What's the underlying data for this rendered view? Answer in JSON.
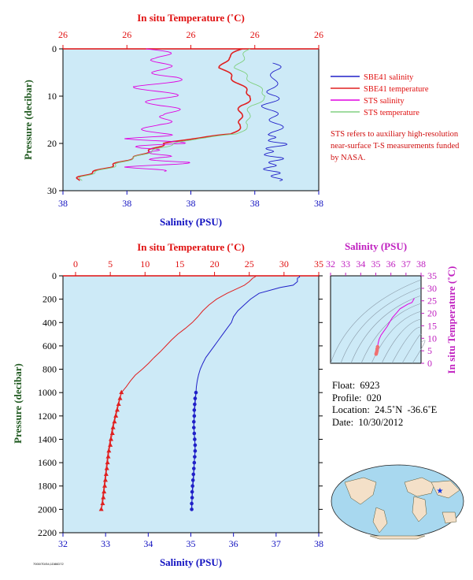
{
  "colors": {
    "salinity": "#2020c8",
    "temperature": "#e02020",
    "sts_salinity": "#e000e0",
    "sts_temperature": "#80d080",
    "plot_bg": "#cdeaf7",
    "axis_red": "#e01010",
    "axis_blue": "#1010c0",
    "axis_green": "#205a20",
    "axis_magenta": "#c020c0"
  },
  "top_panel": {
    "title": "In situ Temperature (˚C)",
    "temp_ticks": [
      "26",
      "26",
      "26",
      "26",
      "26"
    ],
    "xlabel": "Salinity (PSU)",
    "sal_ticks": [
      "38",
      "38",
      "38",
      "38",
      "38"
    ],
    "ylabel": "Pressure (decibar)",
    "y_ticks": [
      "0",
      "10",
      "20",
      "30"
    ],
    "legend": [
      {
        "label": "SBE41 salinity",
        "color": "#2020c8"
      },
      {
        "label": "SBE41 temperature",
        "color": "#e02020"
      },
      {
        "label": "STS salinity",
        "color": "#e000e0"
      },
      {
        "label": "STS temperature",
        "color": "#80d080"
      }
    ],
    "note": "STS refers to auxiliary high-resolution near-surface T-S measurements funded by NASA."
  },
  "main_panel": {
    "title": "In situ Temperature (˚C)",
    "temp_ticks": [
      "0",
      "5",
      "10",
      "15",
      "20",
      "25",
      "30",
      "35"
    ],
    "xlabel": "Salinity (PSU)",
    "sal_ticks": [
      "32",
      "33",
      "34",
      "35",
      "36",
      "37",
      "38"
    ],
    "ylabel": "Pressure (decibar)",
    "y_ticks": [
      "0",
      "200",
      "400",
      "600",
      "800",
      "1000",
      "1200",
      "1400",
      "1600",
      "1800",
      "2000",
      "2200"
    ]
  },
  "ts_panel": {
    "title": "Salinity (PSU)",
    "sal_ticks": [
      "32",
      "33",
      "34",
      "35",
      "36",
      "37",
      "38"
    ],
    "ylabel": "In situ Temperature (˚C)",
    "temp_ticks": [
      "0",
      "5",
      "10",
      "15",
      "20",
      "25",
      "30",
      "35"
    ]
  },
  "info": {
    "float": "Float:  6923",
    "profile": "Profile:  020",
    "location": "Location:  24.5˚N  -36.6˚E",
    "date": "Date:  10/30/2012"
  },
  "footer": "7000/7D/54,1D86D72",
  "chart_data": [
    {
      "type": "line",
      "title": "In situ Temperature (˚C)",
      "xlabel": "Salinity (PSU)",
      "ylabel": "Pressure (decibar)",
      "ylim": [
        0,
        30
      ],
      "series": [
        {
          "name": "SBE41 salinity",
          "pressure": [
            3,
            5,
            8,
            10,
            12,
            14,
            16,
            18,
            19,
            20,
            21,
            22,
            23,
            24,
            25,
            26,
            27,
            28
          ],
          "x_frac": [
            0.82,
            0.84,
            0.81,
            0.83,
            0.8,
            0.82,
            0.84,
            0.83,
            0.8,
            0.86,
            0.82,
            0.79,
            0.84,
            0.83,
            0.8,
            0.82,
            0.84,
            0.83
          ]
        },
        {
          "name": "SBE41 temperature",
          "pressure": [
            0,
            2,
            4,
            6,
            8,
            10,
            12,
            14,
            16,
            18,
            19,
            20,
            21,
            22,
            23,
            24,
            25,
            26,
            27,
            28
          ],
          "x_frac": [
            0.7,
            0.64,
            0.62,
            0.66,
            0.7,
            0.74,
            0.7,
            0.69,
            0.7,
            0.66,
            0.5,
            0.4,
            0.36,
            0.32,
            0.28,
            0.22,
            0.18,
            0.12,
            0.07,
            0.05
          ]
        },
        {
          "name": "STS salinity",
          "pressure": [
            0,
            2,
            4,
            6,
            8,
            10,
            12,
            14,
            16,
            18,
            19,
            20,
            21,
            22,
            23,
            24,
            25,
            26
          ],
          "x_frac": [
            0.33,
            0.41,
            0.36,
            0.44,
            0.33,
            0.4,
            0.37,
            0.45,
            0.34,
            0.39,
            0.3,
            0.44,
            0.28,
            0.4,
            0.35,
            0.46,
            0.3,
            0.36
          ]
        },
        {
          "name": "STS temperature",
          "pressure": [
            0,
            2,
            4,
            6,
            8,
            10,
            12,
            14,
            16,
            18,
            19,
            20,
            21,
            22,
            23,
            24,
            25,
            26,
            27,
            28
          ],
          "x_frac": [
            0.73,
            0.7,
            0.68,
            0.72,
            0.76,
            0.8,
            0.74,
            0.72,
            0.73,
            0.68,
            0.52,
            0.44,
            0.38,
            0.33,
            0.28,
            0.23,
            0.19,
            0.13,
            0.08,
            0.06
          ]
        }
      ]
    },
    {
      "type": "line",
      "title": "In situ Temperature (˚C)",
      "xlabel": "Salinity (PSU)",
      "ylabel": "Pressure (decibar)",
      "ylim": [
        0,
        2200
      ],
      "xlim_temperature": [
        0,
        35
      ],
      "xlim_salinity": [
        32,
        38
      ],
      "series": [
        {
          "name": "temperature",
          "unit": "˚C",
          "pressure": [
            0,
            10,
            20,
            50,
            80,
            100,
            150,
            200,
            250,
            300,
            350,
            400,
            450,
            500,
            550,
            600,
            650,
            700,
            750,
            800,
            850,
            900,
            950,
            1000,
            1100,
            1200,
            1300,
            1400,
            1500,
            1600,
            1700,
            1800,
            1900,
            2000
          ],
          "values": [
            26.0,
            25.8,
            25.5,
            25.0,
            24.3,
            23.6,
            21.8,
            20.3,
            19.2,
            18.3,
            17.6,
            16.8,
            15.8,
            14.7,
            13.8,
            13.0,
            12.2,
            11.3,
            10.5,
            9.6,
            8.6,
            7.9,
            7.3,
            6.6,
            6.1,
            5.7,
            5.3,
            5.0,
            4.7,
            4.5,
            4.3,
            4.1,
            3.9,
            3.7
          ]
        },
        {
          "name": "salinity",
          "unit": "PSU",
          "pressure": [
            0,
            10,
            20,
            50,
            80,
            100,
            150,
            200,
            250,
            300,
            350,
            400,
            450,
            500,
            550,
            600,
            650,
            700,
            750,
            800,
            850,
            900,
            950,
            1000,
            1100,
            1200,
            1300,
            1400,
            1500,
            1600,
            1700,
            1800,
            1900,
            2000
          ],
          "values": [
            37.55,
            37.55,
            37.5,
            37.5,
            37.4,
            37.1,
            36.6,
            36.4,
            36.25,
            36.1,
            36.0,
            35.95,
            35.85,
            35.75,
            35.65,
            35.55,
            35.45,
            35.35,
            35.28,
            35.22,
            35.18,
            35.15,
            35.13,
            35.12,
            35.1,
            35.08,
            35.07,
            35.09,
            35.1,
            35.08,
            35.07,
            35.05,
            35.03,
            35.02
          ]
        },
        {
          "name": "temperature markers",
          "unit": "˚C",
          "pressure": [
            1000,
            1050,
            1100,
            1150,
            1200,
            1250,
            1300,
            1350,
            1400,
            1450,
            1500,
            1550,
            1600,
            1650,
            1700,
            1750,
            1800,
            1850,
            1900,
            1950,
            2000
          ],
          "values": [
            6.6,
            6.4,
            6.2,
            6.0,
            5.8,
            5.6,
            5.4,
            5.3,
            5.1,
            5.0,
            4.8,
            4.7,
            4.6,
            4.5,
            4.4,
            4.3,
            4.2,
            4.1,
            4.0,
            3.9,
            3.7
          ]
        },
        {
          "name": "salinity markers",
          "unit": "PSU",
          "pressure": [
            1000,
            1050,
            1100,
            1150,
            1200,
            1250,
            1300,
            1350,
            1400,
            1450,
            1500,
            1550,
            1600,
            1650,
            1700,
            1750,
            1800,
            1850,
            1900,
            1950,
            2000
          ],
          "values": [
            35.12,
            35.1,
            35.09,
            35.08,
            35.08,
            35.07,
            35.07,
            35.08,
            35.09,
            35.1,
            35.1,
            35.09,
            35.08,
            35.07,
            35.06,
            35.05,
            35.04,
            35.03,
            35.03,
            35.02,
            35.02
          ]
        }
      ]
    },
    {
      "type": "scatter",
      "title": "Salinity (PSU)",
      "xlabel": "Salinity (PSU)",
      "ylabel": "In situ Temperature (˚C)",
      "xlim": [
        32,
        38
      ],
      "ylim": [
        0,
        35
      ],
      "series": [
        {
          "name": "T-S",
          "x": [
            37.55,
            37.4,
            37.1,
            36.6,
            36.4,
            36.1,
            35.95,
            35.75,
            35.55,
            35.35,
            35.22,
            35.15,
            35.12,
            35.09,
            35.08,
            35.05,
            35.02
          ],
          "y": [
            26.0,
            24.3,
            23.6,
            21.8,
            20.3,
            18.3,
            16.8,
            14.7,
            13.0,
            11.3,
            9.6,
            7.9,
            6.6,
            5.7,
            5.0,
            4.3,
            3.7
          ]
        }
      ]
    }
  ]
}
